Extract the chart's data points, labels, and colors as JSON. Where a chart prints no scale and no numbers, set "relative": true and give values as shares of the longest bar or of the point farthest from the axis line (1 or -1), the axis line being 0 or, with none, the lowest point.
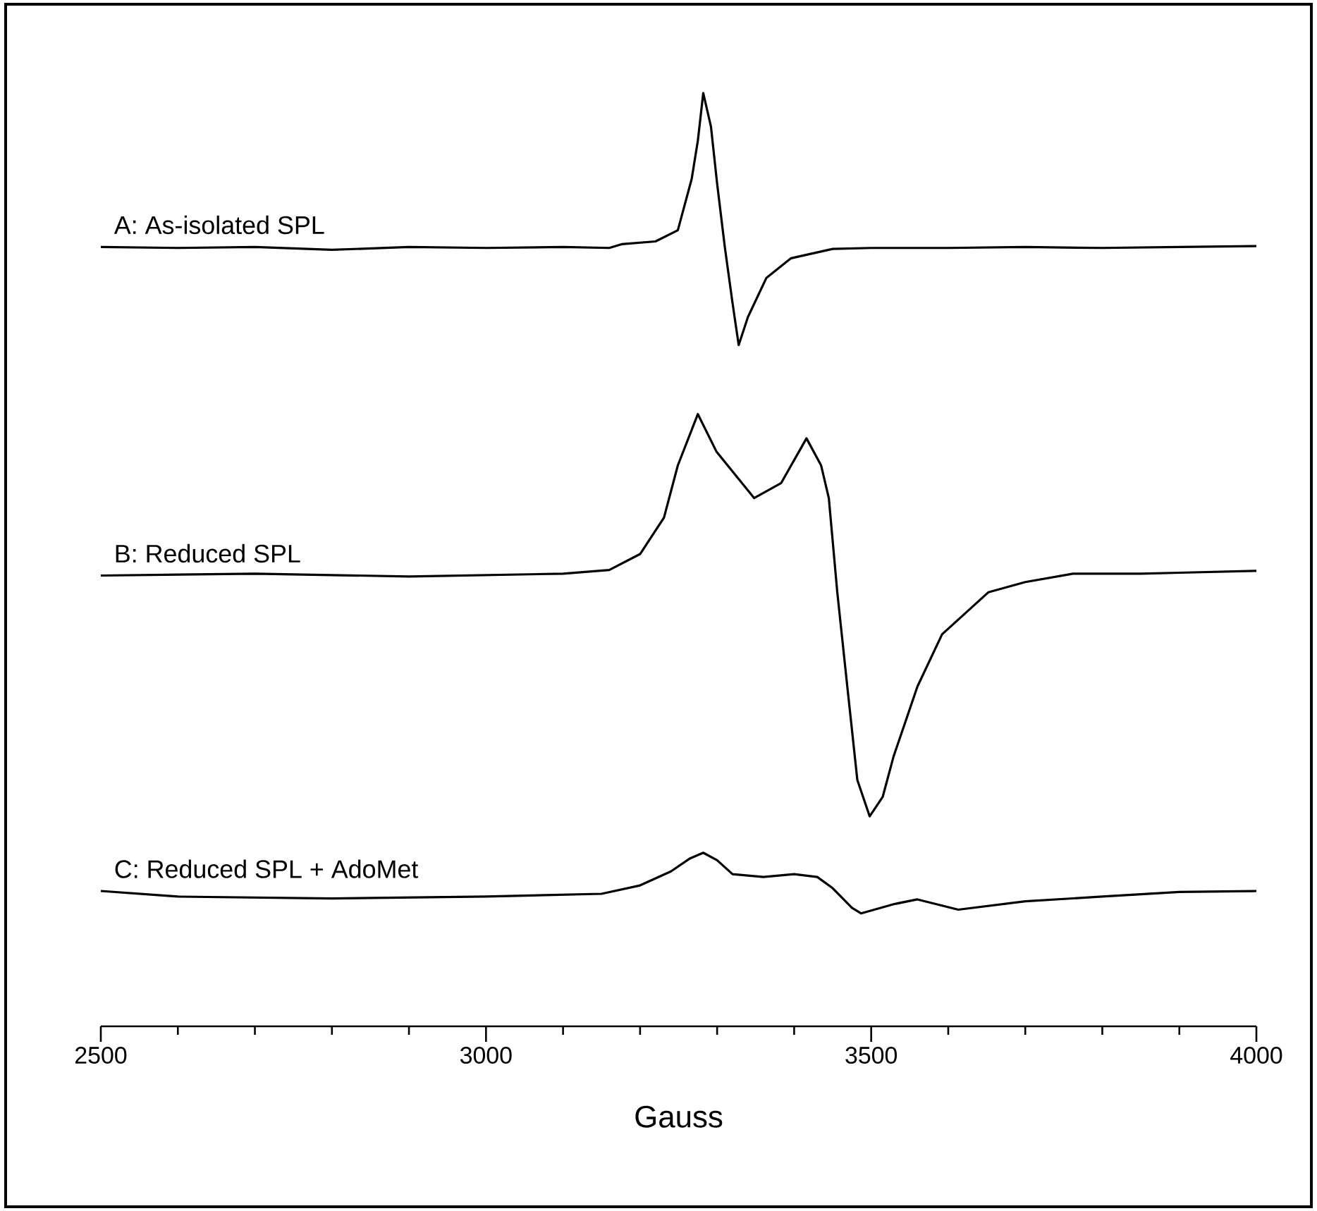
{
  "chart_data": {
    "type": "line",
    "relative": true,
    "xlabel": "Gauss",
    "xlim": [
      2500,
      4000
    ],
    "xticks": [
      2500,
      {
        "value": 2600,
        "label": null
      },
      {
        "value": 2700,
        "label": null
      },
      {
        "value": 2800,
        "label": null
      },
      {
        "value": 2900,
        "label": null
      },
      3000,
      {
        "value": 3100,
        "label": null
      },
      {
        "value": 3200,
        "label": null
      },
      {
        "value": 3300,
        "label": null
      },
      {
        "value": 3400,
        "label": null
      },
      3500,
      {
        "value": 3600,
        "label": null
      },
      {
        "value": 3700,
        "label": null
      },
      {
        "value": 3800,
        "label": null
      },
      {
        "value": 3900,
        "label": null
      },
      4000
    ],
    "series": [
      {
        "name": "A: As-isolated SPL",
        "color": "#000000",
        "x": [
          2500,
          2600,
          2700,
          2800,
          2900,
          3000,
          3100,
          3160,
          3176,
          3220,
          3249,
          3267,
          3275,
          3282,
          3292,
          3300,
          3310,
          3320,
          3328,
          3340,
          3364,
          3396,
          3450,
          3500,
          3600,
          3700,
          3800,
          3900,
          4000
        ],
        "values": [
          0.835,
          0.834,
          0.835,
          0.832,
          0.835,
          0.834,
          0.835,
          0.834,
          0.838,
          0.841,
          0.853,
          0.908,
          0.949,
          1.0,
          0.964,
          0.903,
          0.835,
          0.775,
          0.73,
          0.76,
          0.802,
          0.823,
          0.833,
          0.834,
          0.834,
          0.835,
          0.834,
          0.835,
          0.836
        ]
      },
      {
        "name": "B: Reduced SPL",
        "color": "#000000",
        "x": [
          2500,
          2700,
          2900,
          3100,
          3160,
          3200,
          3231,
          3249,
          3275,
          3299,
          3348,
          3383,
          3416,
          3435,
          3445,
          3456,
          3469,
          3482,
          3498,
          3515,
          3529,
          3560,
          3592,
          3652,
          3700,
          3762,
          3850,
          3900,
          4000
        ],
        "values": [
          0.483,
          0.485,
          0.482,
          0.485,
          0.489,
          0.506,
          0.545,
          0.601,
          0.656,
          0.616,
          0.566,
          0.582,
          0.63,
          0.601,
          0.566,
          0.465,
          0.364,
          0.264,
          0.225,
          0.246,
          0.289,
          0.364,
          0.42,
          0.465,
          0.476,
          0.485,
          0.485,
          0.486,
          0.488
        ]
      },
      {
        "name": "C: Reduced SPL + AdoMet",
        "color": "#000000",
        "x": [
          2500,
          2600,
          2800,
          3000,
          3150,
          3200,
          3240,
          3265,
          3282,
          3300,
          3320,
          3360,
          3400,
          3430,
          3450,
          3475,
          3487,
          3530,
          3560,
          3613,
          3700,
          3800,
          3900,
          4000
        ],
        "values": [
          0.145,
          0.139,
          0.137,
          0.139,
          0.142,
          0.151,
          0.166,
          0.18,
          0.186,
          0.178,
          0.163,
          0.16,
          0.163,
          0.16,
          0.148,
          0.127,
          0.121,
          0.131,
          0.136,
          0.125,
          0.134,
          0.139,
          0.144,
          0.145
        ]
      }
    ]
  }
}
